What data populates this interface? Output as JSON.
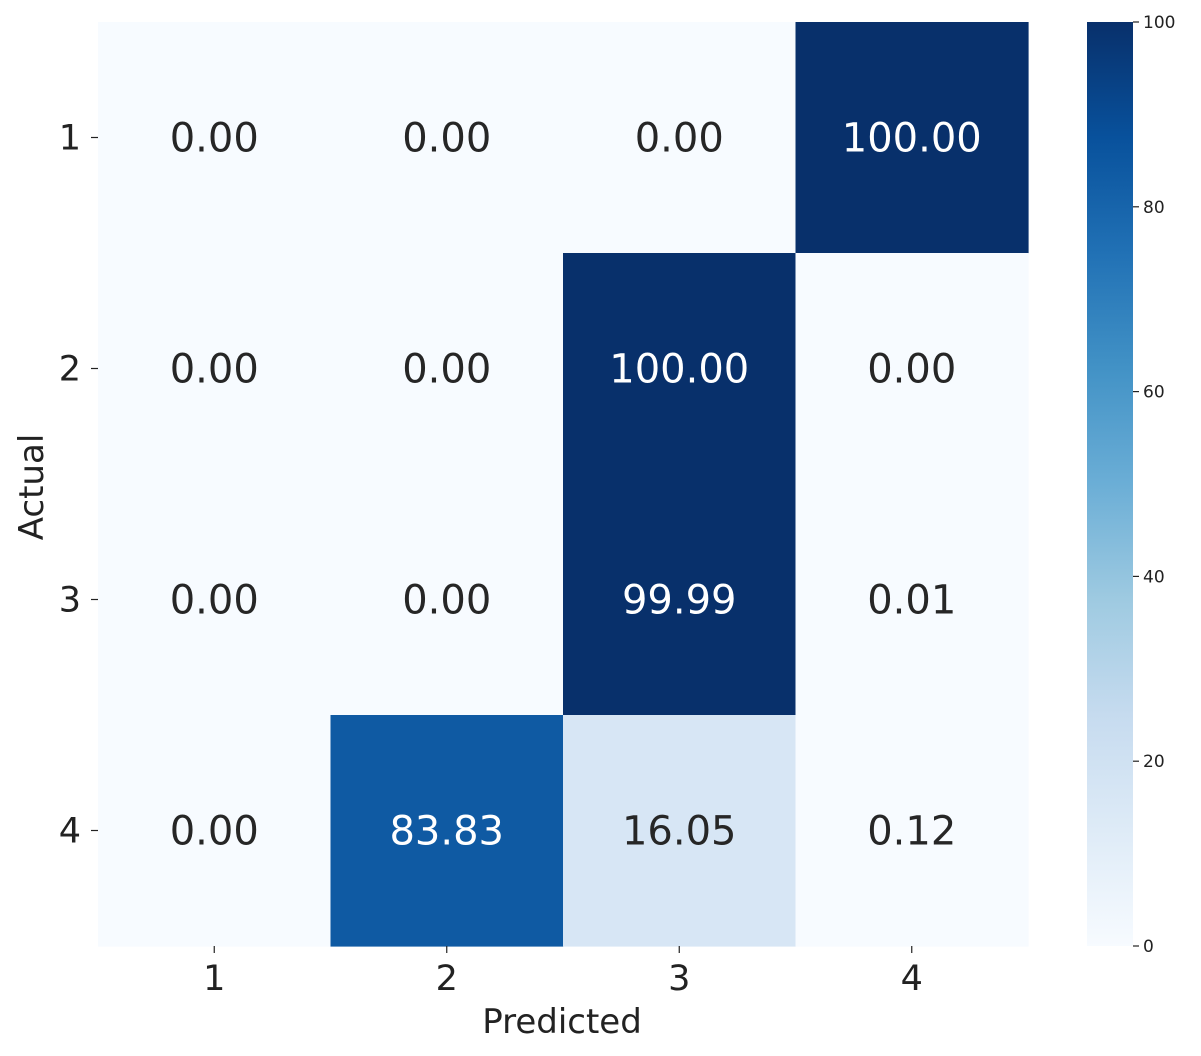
{
  "chart_data": {
    "type": "heatmap",
    "title": "",
    "xlabel": "Predicted",
    "ylabel": "Actual",
    "x_categories": [
      "1",
      "2",
      "3",
      "4"
    ],
    "y_categories": [
      "1",
      "2",
      "3",
      "4"
    ],
    "values": [
      [
        0.0,
        0.0,
        0.0,
        100.0
      ],
      [
        0.0,
        0.0,
        100.0,
        0.0
      ],
      [
        0.0,
        0.0,
        99.99,
        0.01
      ],
      [
        0.0,
        83.83,
        16.05,
        0.12
      ]
    ],
    "value_labels": [
      [
        "0.00",
        "0.00",
        "0.00",
        "100.00"
      ],
      [
        "0.00",
        "0.00",
        "100.00",
        "0.00"
      ],
      [
        "0.00",
        "0.00",
        "99.99",
        "0.01"
      ],
      [
        "0.00",
        "83.83",
        "16.05",
        "0.12"
      ]
    ],
    "colormap": "Blues",
    "colorbar": {
      "range": [
        0,
        100
      ],
      "ticks": [
        0,
        20,
        40,
        60,
        80,
        100
      ],
      "tick_labels": [
        "0",
        "20",
        "40",
        "60",
        "80",
        "100"
      ]
    },
    "colors": {
      "low": "#f7fbff",
      "high": "#08306b",
      "text_dark": "#262626",
      "text_light": "#ffffff"
    }
  }
}
